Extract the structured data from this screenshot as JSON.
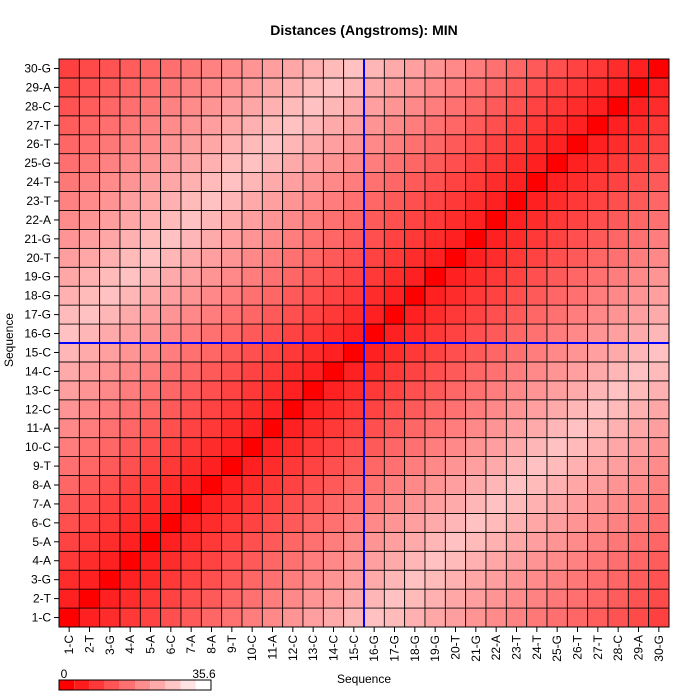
{
  "chart_data": {
    "type": "heatmap",
    "title": "Distances (Angstroms):  MIN",
    "xlabel": "Sequence",
    "ylabel": "Sequence",
    "x_categories": [
      "1-C",
      "2-T",
      "3-G",
      "4-A",
      "5-A",
      "6-C",
      "7-A",
      "8-A",
      "9-T",
      "10-C",
      "11-A",
      "12-C",
      "13-C",
      "14-C",
      "15-C",
      "16-G",
      "17-G",
      "18-G",
      "19-G",
      "20-T",
      "21-G",
      "22-A",
      "23-T",
      "24-T",
      "25-G",
      "26-T",
      "27-T",
      "28-C",
      "29-A",
      "30-G"
    ],
    "y_categories": [
      "1-C",
      "2-T",
      "3-G",
      "4-A",
      "5-A",
      "6-C",
      "7-A",
      "8-A",
      "9-T",
      "10-C",
      "11-A",
      "12-C",
      "13-C",
      "14-C",
      "15-C",
      "16-G",
      "17-G",
      "18-G",
      "19-G",
      "20-T",
      "21-G",
      "22-A",
      "23-T",
      "24-T",
      "25-G",
      "26-T",
      "27-T",
      "28-C",
      "29-A",
      "30-G"
    ],
    "value_range": [
      0,
      35.6
    ],
    "colorscale": {
      "low": "#ff0000",
      "high": "#ffffff"
    },
    "diagonal_value": 0,
    "highlight_lines": {
      "x_between": [
        "15-C",
        "16-G"
      ],
      "y_between": [
        "15-C",
        "16-G"
      ],
      "color": "#0000ff"
    },
    "legend_labels": {
      "min": "0",
      "max": "35.6"
    },
    "grid": true
  }
}
